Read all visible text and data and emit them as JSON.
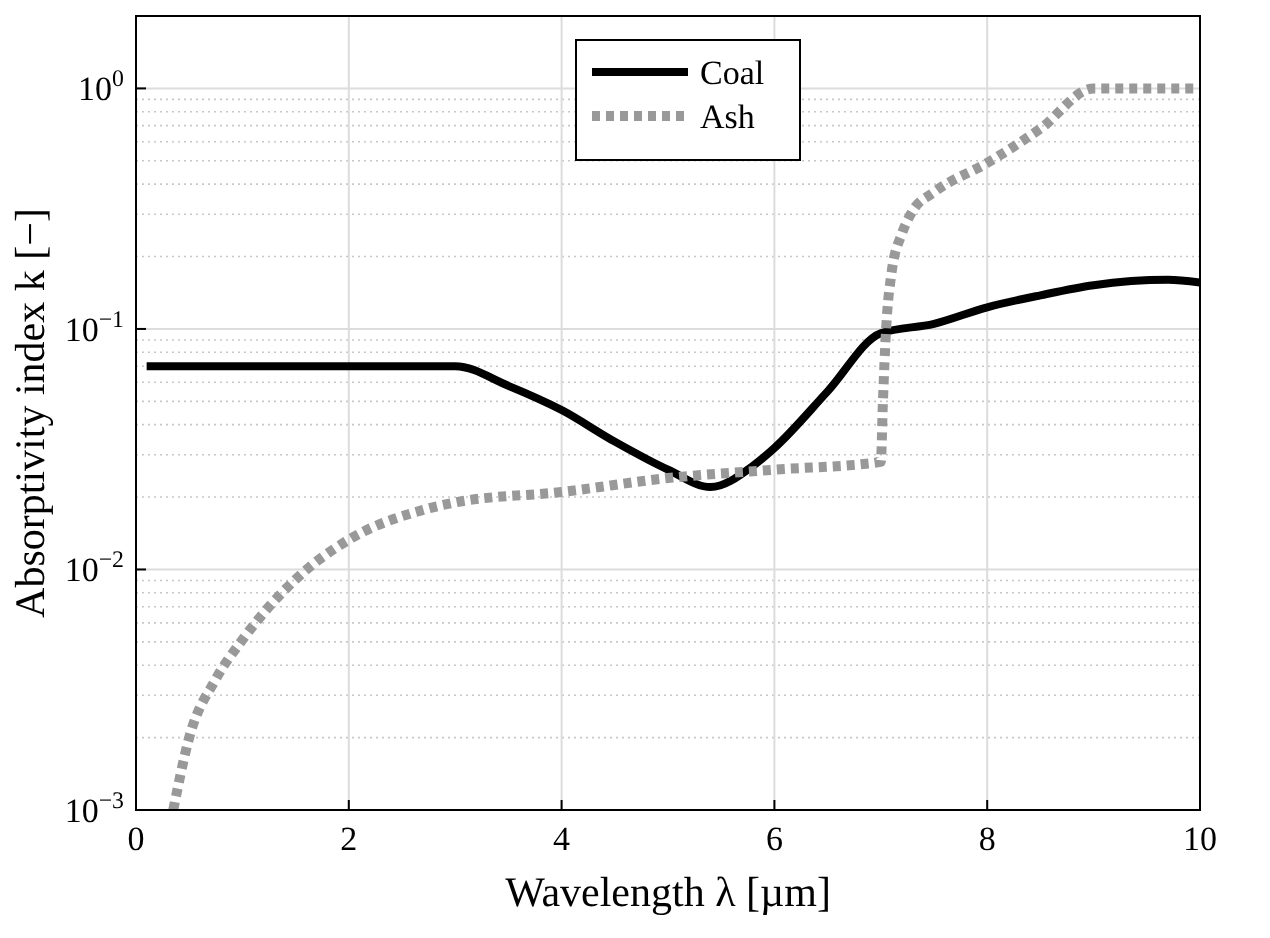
{
  "chart_data": {
    "type": "line",
    "xlabel": "Wavelength λ [µm]",
    "ylabel": "Absorptivity index k [−]",
    "log": "y",
    "grid": true,
    "legend": "top",
    "xlim": [
      0,
      10
    ],
    "ylim": [
      0.001,
      2
    ],
    "xticks": [
      0,
      2,
      4,
      6,
      8,
      10
    ],
    "yticks": [
      {
        "value": 0.001,
        "label": "10$^{−3}$"
      },
      {
        "value": 0.01,
        "label": "10$^{−2}$"
      },
      {
        "value": 0.1,
        "label": "10$^{−1}$"
      },
      {
        "value": 1,
        "label": "10$^{0}$"
      }
    ],
    "series": [
      {
        "name": "Coal",
        "color": "#000000",
        "line_style": "solid",
        "x": [
          0.1,
          1,
          2,
          3,
          3.5,
          4,
          4.5,
          5,
          5.4,
          5.8,
          6,
          6.5,
          7,
          7.5,
          8,
          8.5,
          9,
          9.7,
          10
        ],
        "values": [
          0.07,
          0.07,
          0.07,
          0.07,
          0.058,
          0.046,
          0.034,
          0.026,
          0.022,
          0.027,
          0.032,
          0.055,
          0.096,
          0.105,
          0.123,
          0.138,
          0.152,
          0.16,
          0.156
        ]
      },
      {
        "name": "Ash",
        "color": "#999999",
        "line_style": "dotted",
        "x": [
          0.35,
          0.5,
          0.75,
          1,
          1.5,
          2,
          2.7,
          3,
          4,
          5,
          6,
          7,
          7.02,
          7.05,
          7.1,
          7.2,
          7.3,
          7.5,
          8,
          8.5,
          9,
          10
        ],
        "values": [
          0.001,
          0.002,
          0.0035,
          0.0051,
          0.0091,
          0.0133,
          0.0177,
          0.019,
          0.021,
          0.024,
          0.026,
          0.028,
          0.05,
          0.1,
          0.17,
          0.25,
          0.31,
          0.37,
          0.49,
          0.68,
          1,
          1
        ]
      }
    ]
  }
}
